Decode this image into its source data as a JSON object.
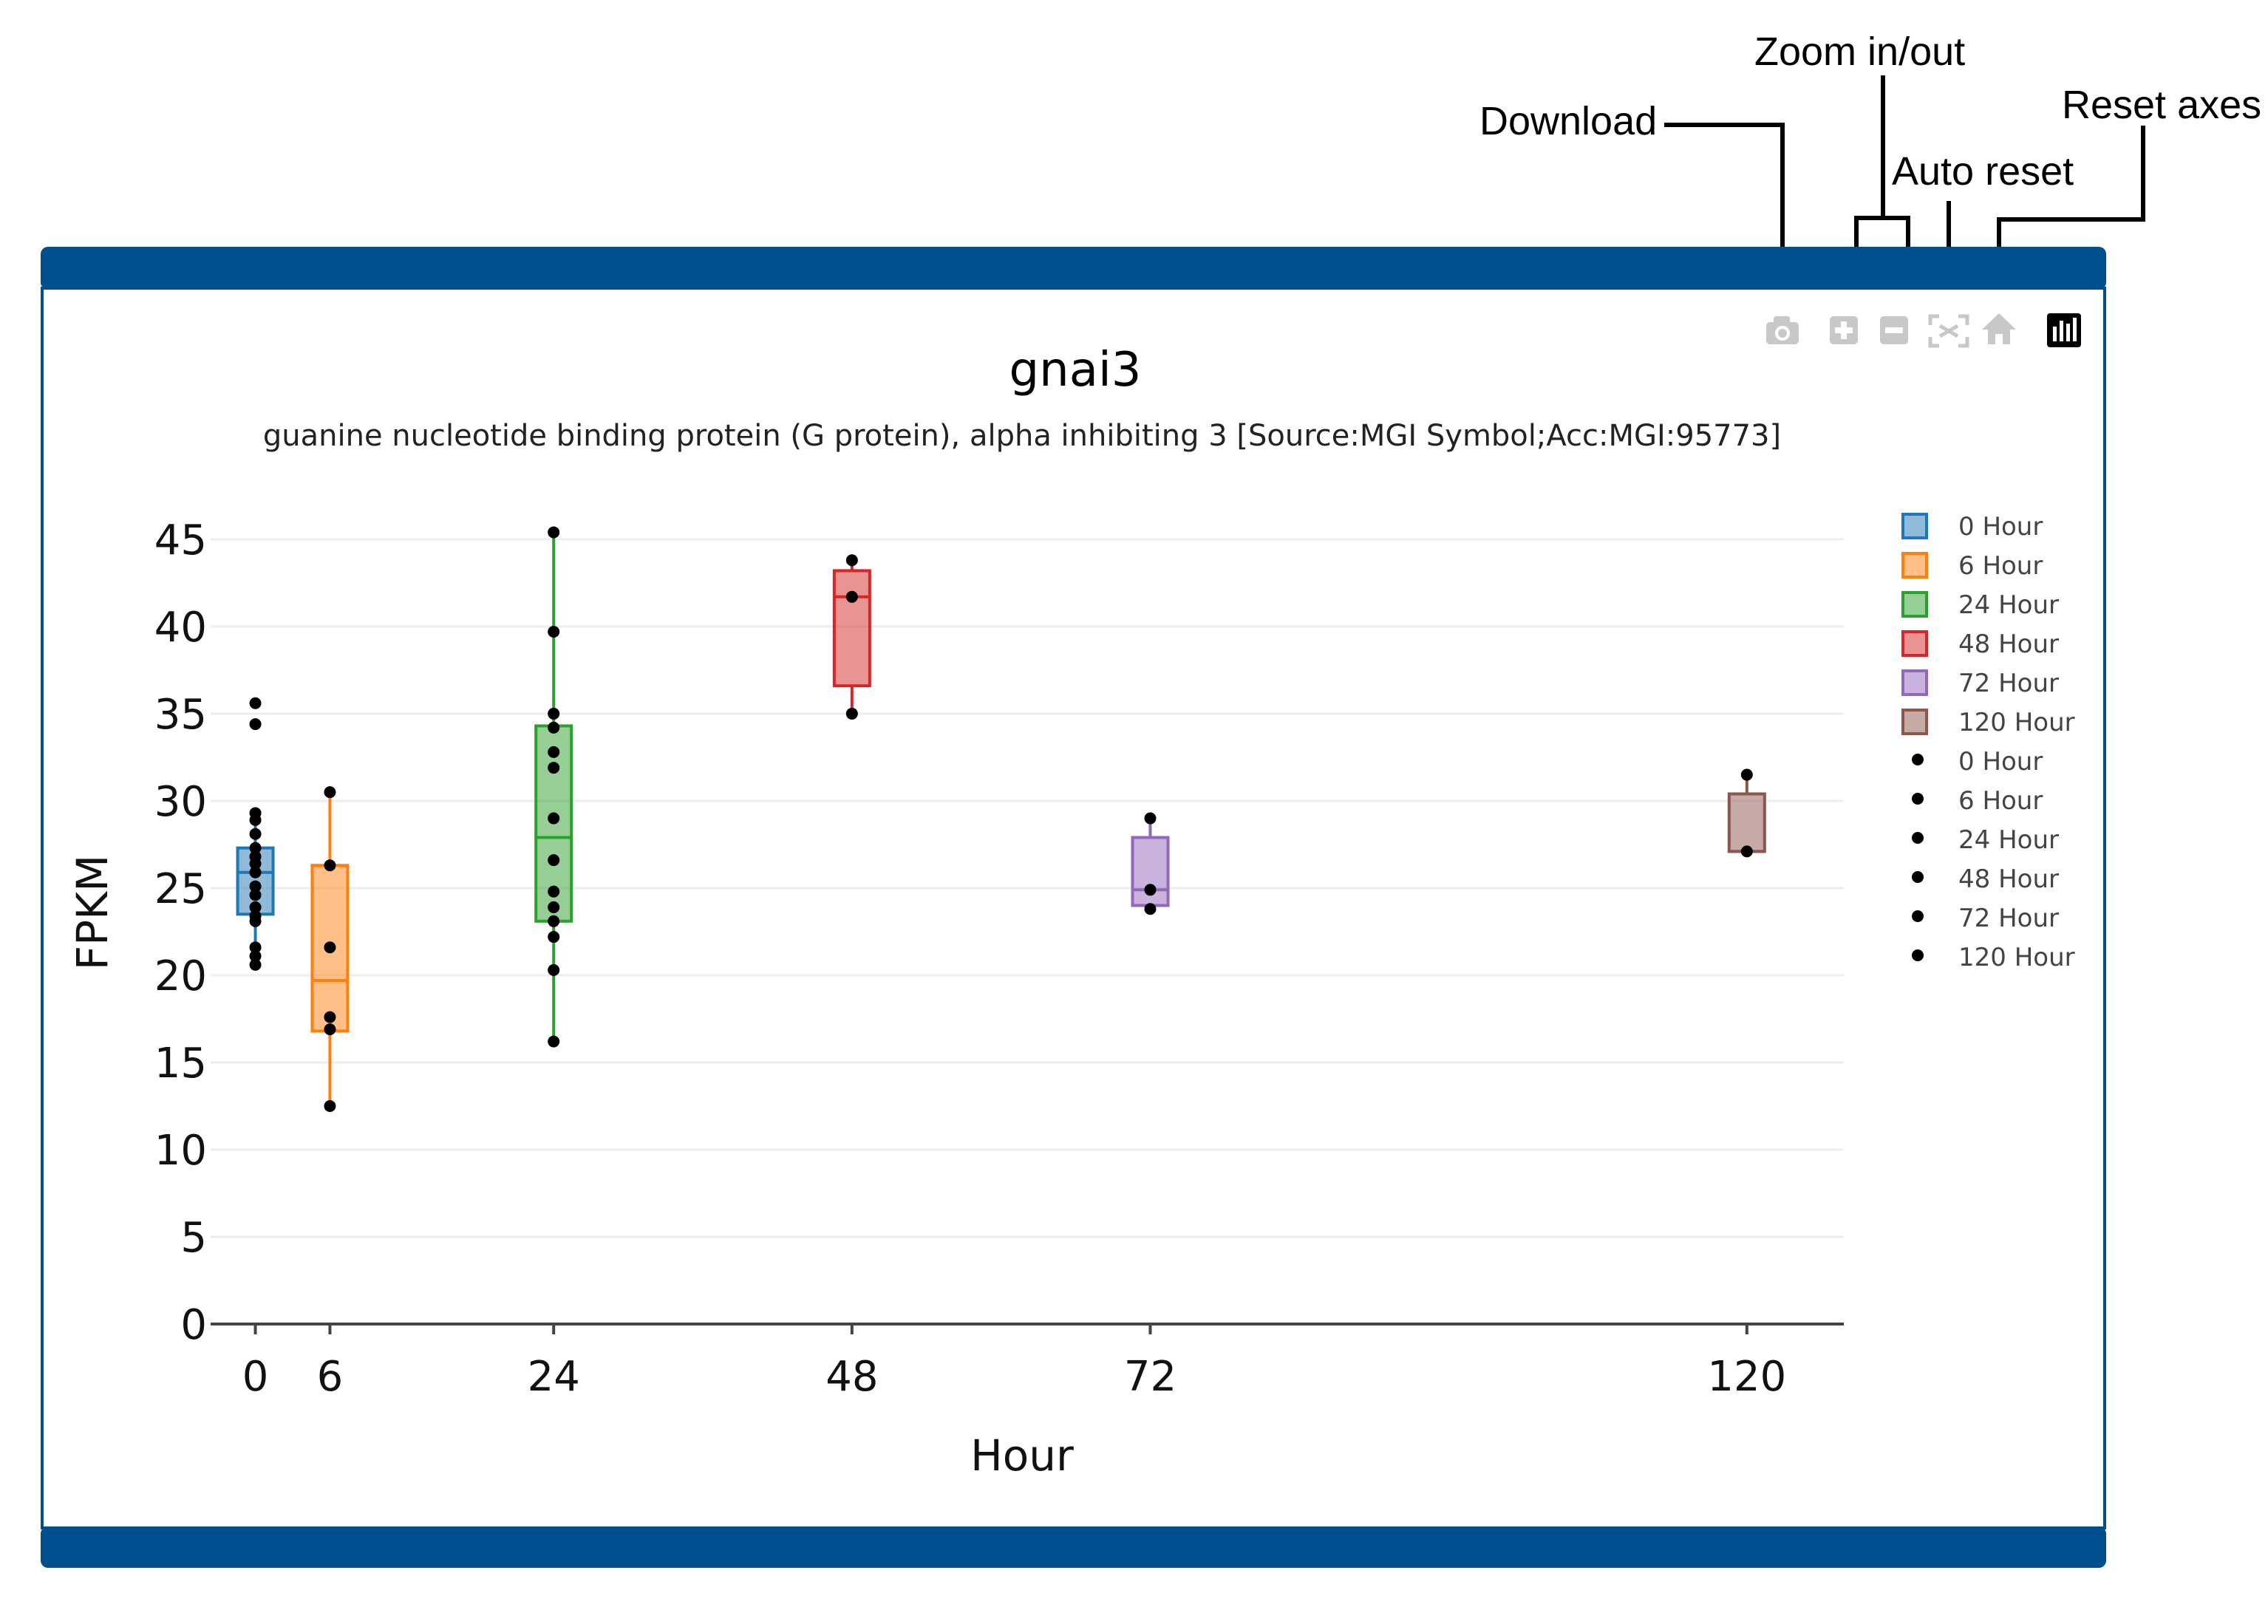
{
  "annotations": {
    "download": "Download",
    "zoom": "Zoom in/out",
    "auto_reset": "Auto reset",
    "reset_axes": "Reset axes"
  },
  "modebar": {
    "camera_icon": "camera-icon",
    "zoom_in_icon": "zoom-in-icon",
    "zoom_out_icon": "zoom-out-icon",
    "autoscale_icon": "autoscale-icon",
    "home_icon": "home-icon",
    "logo_icon": "plotly-logo-icon"
  },
  "colors": {
    "frame": "#00508f",
    "modebar_icon": "#c8c8c8"
  },
  "chart_data": {
    "type": "box",
    "title": "gnai3",
    "subtitle": "guanine nucleotide binding protein (G protein), alpha inhibiting 3 [Source:MGI Symbol;Acc:MGI:95773]",
    "xlabel": "Hour",
    "ylabel": "FPKM",
    "xlim": [
      -3.6,
      127.8
    ],
    "ylim": [
      0,
      45
    ],
    "xticks": [
      0,
      6,
      24,
      48,
      72,
      120
    ],
    "yticks": [
      0,
      5,
      10,
      15,
      20,
      25,
      30,
      35,
      40,
      45
    ],
    "grid": true,
    "legend_position": "right",
    "series": [
      {
        "name": "0 Hour",
        "x": 0,
        "color": "#1f77b4",
        "q1": 23.5,
        "median": 25.9,
        "q3": 27.3,
        "whisker_low": 20.6,
        "whisker_high": 29.3,
        "points": [
          35.6,
          34.4,
          29.3,
          28.9,
          28.1,
          27.3,
          26.8,
          26.4,
          25.9,
          25.1,
          24.6,
          23.9,
          23.4,
          23.1,
          21.6,
          21.1,
          20.6
        ]
      },
      {
        "name": "6 Hour",
        "x": 6,
        "color": "#ff7f0e",
        "q1": 16.8,
        "median": 19.7,
        "q3": 26.3,
        "whisker_low": 12.5,
        "whisker_high": 30.5,
        "points": [
          30.5,
          26.3,
          21.6,
          17.6,
          16.9,
          12.5
        ]
      },
      {
        "name": "24 Hour",
        "x": 24,
        "color": "#2ca02c",
        "q1": 23.1,
        "median": 27.9,
        "q3": 34.3,
        "whisker_low": 16.2,
        "whisker_high": 45.4,
        "points": [
          45.4,
          39.7,
          35.0,
          34.2,
          32.8,
          31.9,
          29.0,
          26.6,
          24.8,
          23.9,
          23.1,
          22.2,
          20.3,
          16.2
        ]
      },
      {
        "name": "48 Hour",
        "x": 48,
        "color": "#d62728",
        "q1": 36.6,
        "median": 41.7,
        "q3": 43.2,
        "whisker_low": 35.0,
        "whisker_high": 43.8,
        "points": [
          43.8,
          41.7,
          35.0
        ]
      },
      {
        "name": "72 Hour",
        "x": 72,
        "color": "#9467bd",
        "q1": 24.0,
        "median": 24.9,
        "q3": 27.9,
        "whisker_low": 23.8,
        "whisker_high": 29.0,
        "points": [
          29.0,
          24.9,
          23.8
        ]
      },
      {
        "name": "120 Hour",
        "x": 120,
        "color": "#8c564b",
        "q1": 27.1,
        "median": 27.1,
        "q3": 30.4,
        "whisker_low": 27.1,
        "whisker_high": 31.5,
        "points": [
          31.5,
          27.1
        ]
      }
    ]
  }
}
